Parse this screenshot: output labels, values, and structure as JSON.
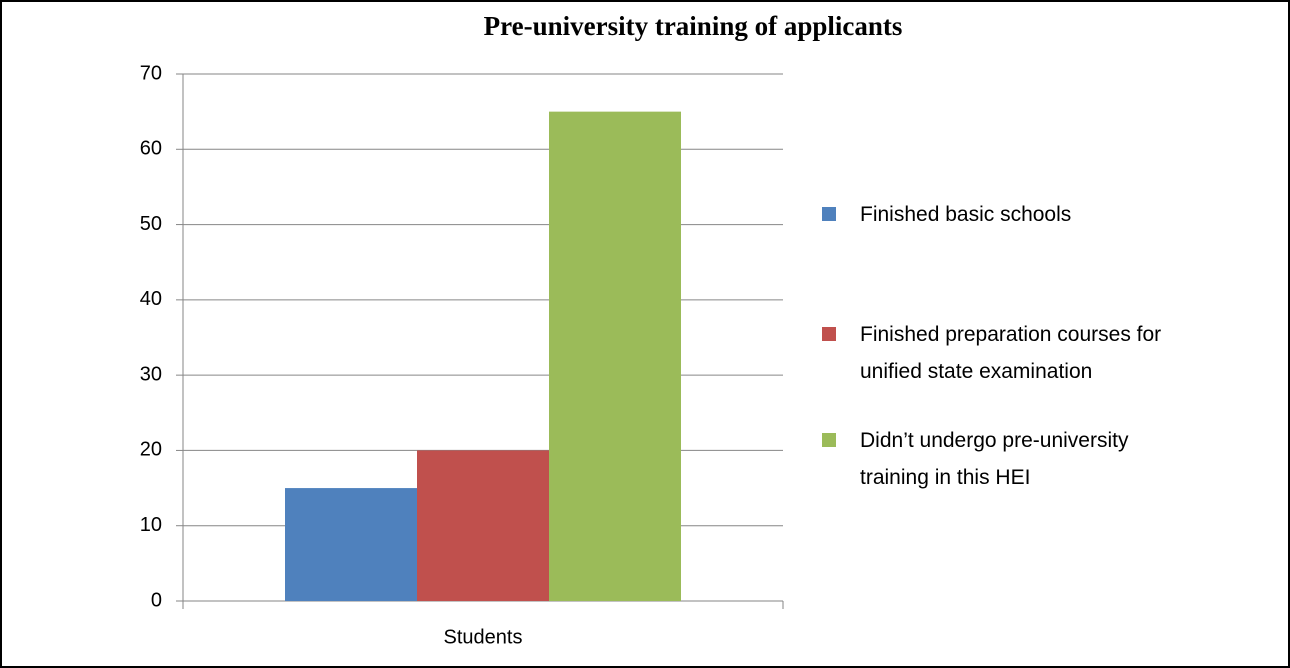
{
  "chart_data": {
    "type": "bar",
    "title": "Pre-university training of applicants",
    "categories": [
      "Students"
    ],
    "series": [
      {
        "name": "Finished basic schools",
        "color": "#4f81bd",
        "values": [
          15
        ]
      },
      {
        "name": "Finished preparation courses for unified state examination",
        "color": "#c0504d",
        "values": [
          20
        ]
      },
      {
        "name": "Didn’t undergo pre-university training in this HEI",
        "color": "#9bbb59",
        "values": [
          65
        ]
      }
    ],
    "ylim": [
      0,
      70
    ],
    "yticks": [
      0,
      10,
      20,
      30,
      40,
      50,
      60,
      70
    ],
    "grid": true,
    "legend": "right"
  }
}
